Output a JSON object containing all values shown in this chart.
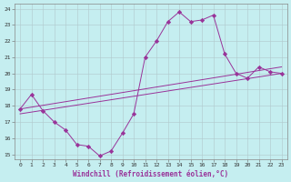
{
  "xlabel": "Windchill (Refroidissement éolien,°C)",
  "background_color": "#c5eef0",
  "grid_color": "#b0c8cc",
  "line_color": "#993399",
  "xlim": [
    -0.5,
    23.5
  ],
  "ylim": [
    14.7,
    24.3
  ],
  "yticks": [
    15,
    16,
    17,
    18,
    19,
    20,
    21,
    22,
    23,
    24
  ],
  "xticks": [
    0,
    1,
    2,
    3,
    4,
    5,
    6,
    7,
    8,
    9,
    10,
    11,
    12,
    13,
    14,
    15,
    16,
    17,
    18,
    19,
    20,
    21,
    22,
    23
  ],
  "series1_x": [
    0,
    1,
    2,
    3,
    4,
    5,
    6,
    7,
    8,
    9,
    10,
    11,
    12,
    13,
    14,
    15,
    16,
    17,
    18,
    19,
    20,
    21,
    22,
    23
  ],
  "series1_y": [
    17.8,
    18.7,
    17.7,
    17.0,
    16.5,
    15.6,
    15.5,
    14.9,
    15.2,
    16.3,
    17.5,
    21.0,
    22.0,
    23.2,
    23.8,
    23.2,
    23.3,
    23.6,
    21.2,
    20.0,
    19.7,
    20.4,
    20.1,
    20.0
  ],
  "series2_x": [
    0,
    23
  ],
  "series2_y": [
    17.8,
    20.4
  ],
  "series3_x": [
    0,
    23
  ],
  "series3_y": [
    17.5,
    20.0
  ]
}
